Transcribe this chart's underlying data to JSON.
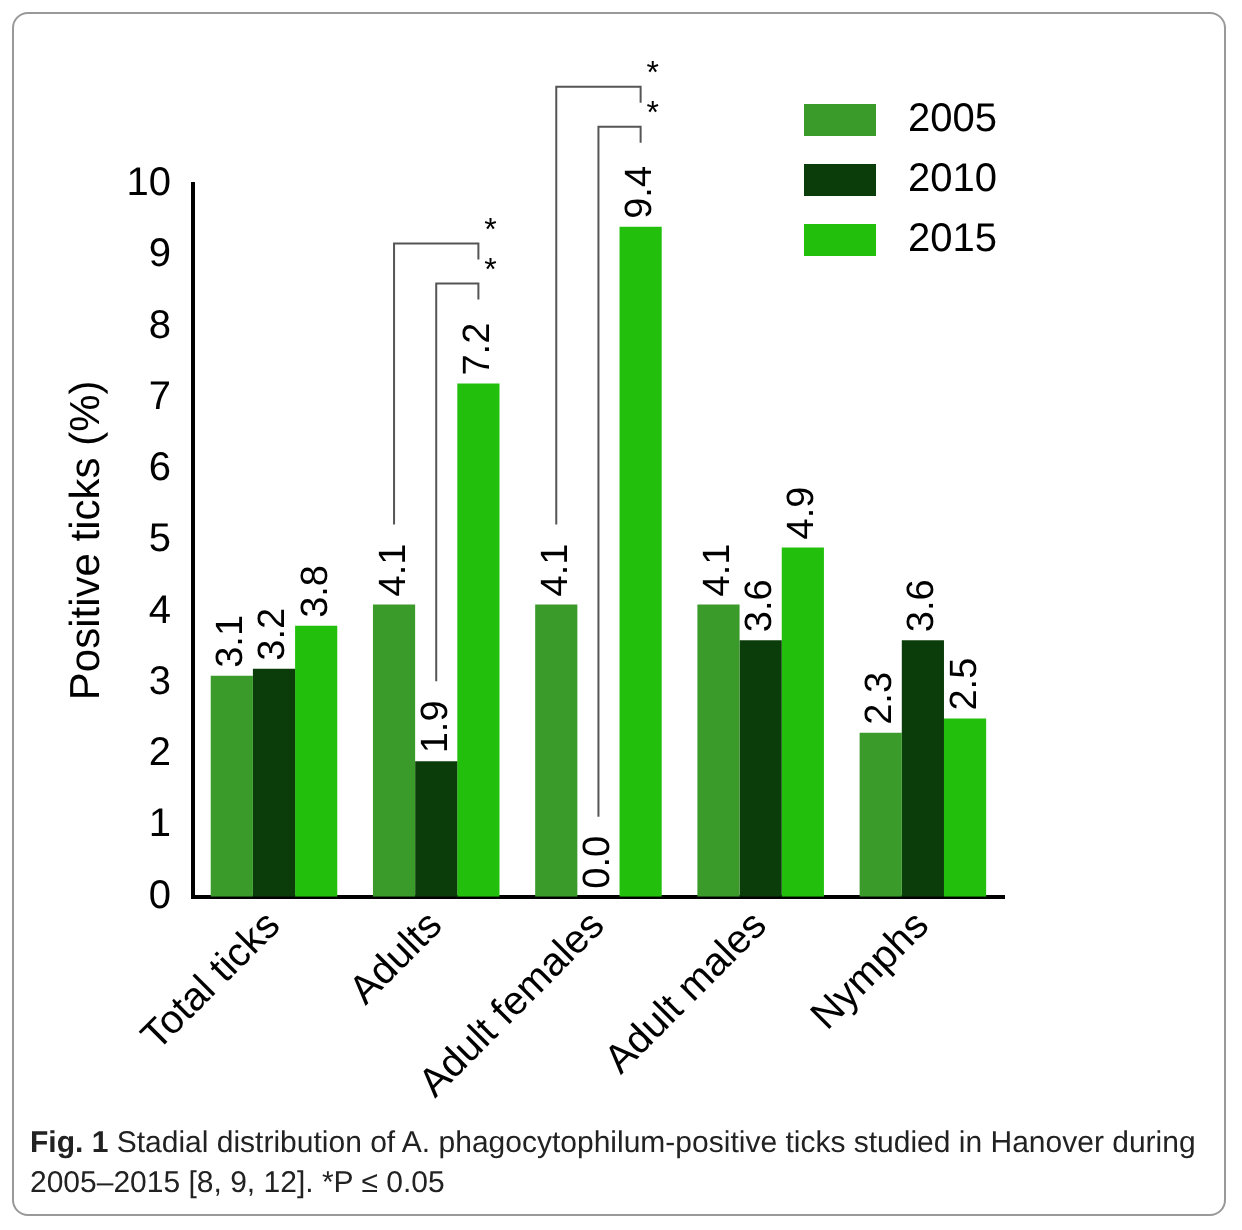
{
  "chart_data": {
    "type": "bar",
    "ylabel": "Positive ticks (%)",
    "categories": [
      "Total ticks",
      "Adults",
      "Adult females",
      "Adult males",
      "Nymphs"
    ],
    "series": [
      {
        "name": "2005",
        "color": "#3a9a2a",
        "values": [
          3.1,
          4.1,
          4.1,
          4.1,
          2.3
        ]
      },
      {
        "name": "2010",
        "color": "#0b3d0b",
        "values": [
          3.2,
          1.9,
          0.0,
          3.6,
          3.6
        ]
      },
      {
        "name": "2015",
        "color": "#22c00c",
        "values": [
          3.8,
          7.2,
          9.4,
          4.9,
          2.5
        ]
      }
    ],
    "value_labels": [
      [
        "3.1",
        "4.1",
        "4.1",
        "4.1",
        "2.3"
      ],
      [
        "3.2",
        "1.9",
        "0.0",
        "3.6",
        "3.6"
      ],
      [
        "3.8",
        "7.2",
        "9.4",
        "4.9",
        "2.5"
      ]
    ],
    "ylim": [
      0,
      10
    ],
    "yticks": [
      0,
      1,
      2,
      3,
      4,
      5,
      6,
      7,
      8,
      9,
      10
    ],
    "grid": false,
    "legend": "top right",
    "annotations": [
      "*",
      "*",
      "*",
      "*",
      "Fig. 1 Stadial distribution of A. phagocytophilum-positive ticks studied in Hanover during 2005–2015 [8, 9, 12]. *P ≤ 0.05"
    ]
  }
}
